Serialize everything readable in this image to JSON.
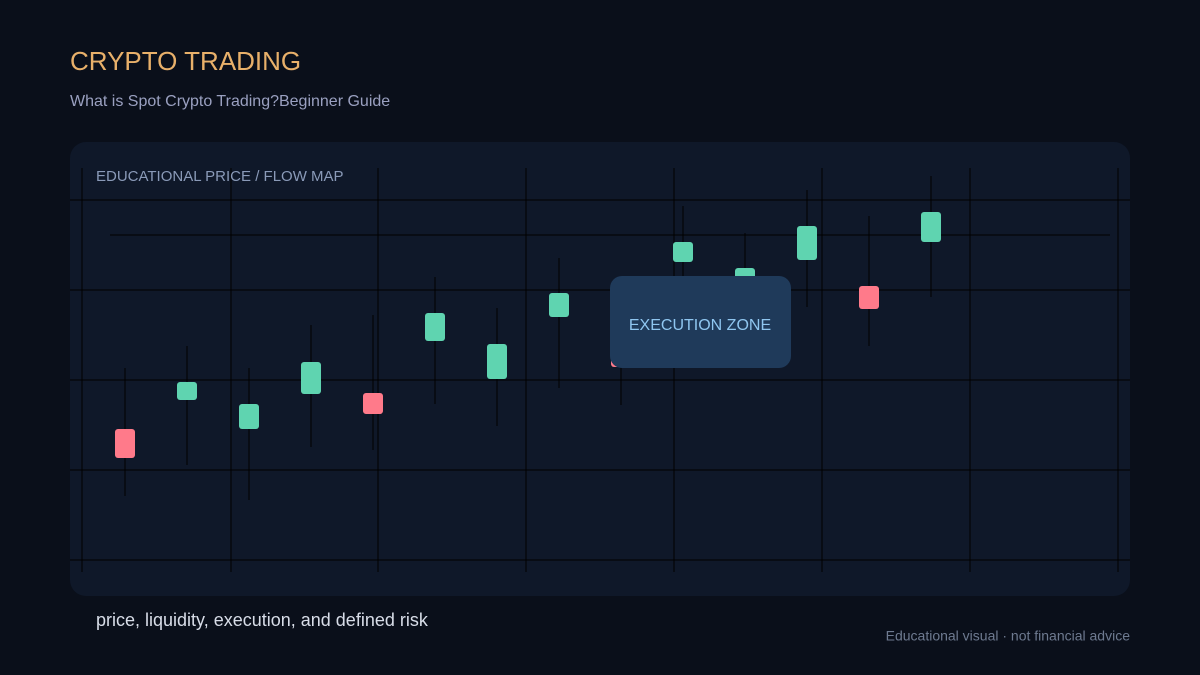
{
  "header": {
    "title": "CRYPTO TRADING",
    "subtitle": "What is Spot Crypto Trading?Beginner Guide"
  },
  "panel": {
    "label": "EDUCATIONAL PRICE / FLOW MAP",
    "callout": "EXECUTION ZONE"
  },
  "footer": {
    "caption": "price, liquidity, execution, and defined risk",
    "disclaimer": "Educational visual · not financial advice"
  }
}
